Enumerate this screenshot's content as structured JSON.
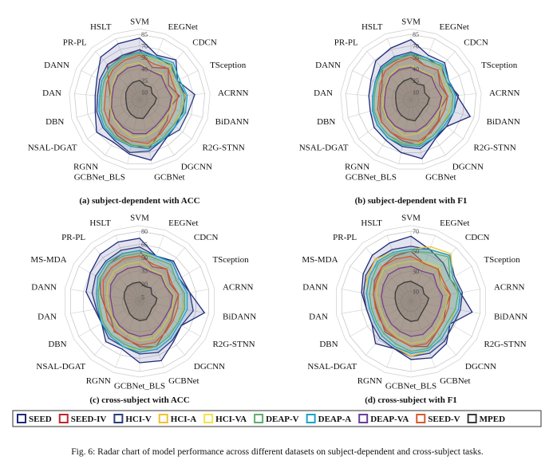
{
  "caption": "Fig. 6: Radar chart of model performance across different datasets on subject-dependent and cross-subject tasks.",
  "legend": [
    {
      "label": "SEED",
      "color": "#1f2a7a"
    },
    {
      "label": "SEED-IV",
      "color": "#c0262d"
    },
    {
      "label": "HCI-V",
      "color": "#2a3d7a"
    },
    {
      "label": "HCI-A",
      "color": "#f2c12e"
    },
    {
      "label": "HCI-VA",
      "color": "#f4e24a"
    },
    {
      "label": "DEAP-V",
      "color": "#5fae6e"
    },
    {
      "label": "DEAP-A",
      "color": "#1aa3c9"
    },
    {
      "label": "DEAP-VA",
      "color": "#6a3d9a"
    },
    {
      "label": "SEED-V",
      "color": "#d9582b"
    },
    {
      "label": "MPED",
      "color": "#3a3a3a"
    }
  ],
  "chart_data": [
    {
      "type": "radar",
      "subtitle": "(a) subject-dependent with ACC",
      "axes": [
        "SVM",
        "EEGNet",
        "CDCN",
        "TSception",
        "ACRNN",
        "BiDANN",
        "R2G-STNN",
        "DGCNN",
        "GCBNet",
        "GCBNet_BLS",
        "RGNN",
        "NSAL-DGAT",
        "DBN",
        "DAN",
        "DANN",
        "PR-PL",
        "HSLT"
      ],
      "ticks": [
        10,
        25,
        40,
        55,
        70,
        85
      ],
      "range": [
        0,
        85
      ],
      "series": [
        {
          "name": "SEED",
          "values": [
            80,
            62,
            70,
            55,
            60,
            58,
            58,
            62,
            80,
            72,
            65,
            70,
            60,
            58,
            62,
            75,
            78
          ]
        },
        {
          "name": "SEED-IV",
          "values": [
            65,
            45,
            55,
            42,
            52,
            40,
            45,
            50,
            65,
            60,
            55,
            50,
            40,
            38,
            45,
            62,
            60
          ]
        },
        {
          "name": "HCI-V",
          "values": [
            65,
            60,
            60,
            55,
            72,
            65,
            65,
            60,
            68,
            70,
            62,
            60,
            58,
            55,
            58,
            62,
            62
          ]
        },
        {
          "name": "HCI-A",
          "values": [
            62,
            55,
            60,
            50,
            60,
            55,
            55,
            58,
            60,
            62,
            58,
            55,
            52,
            50,
            52,
            58,
            60
          ]
        },
        {
          "name": "HCI-VA",
          "values": [
            48,
            40,
            45,
            38,
            45,
            42,
            42,
            45,
            48,
            50,
            45,
            42,
            40,
            38,
            40,
            45,
            48
          ]
        },
        {
          "name": "DEAP-V",
          "values": [
            60,
            58,
            62,
            55,
            58,
            60,
            55,
            58,
            62,
            60,
            58,
            55,
            52,
            50,
            52,
            55,
            58
          ]
        },
        {
          "name": "DEAP-A",
          "values": [
            62,
            60,
            65,
            58,
            62,
            62,
            58,
            60,
            65,
            62,
            60,
            58,
            55,
            52,
            55,
            58,
            60
          ]
        },
        {
          "name": "DEAP-VA",
          "values": [
            45,
            40,
            42,
            38,
            42,
            40,
            38,
            40,
            45,
            45,
            42,
            40,
            38,
            36,
            38,
            42,
            44
          ]
        },
        {
          "name": "SEED-V",
          "values": [
            58,
            50,
            55,
            48,
            50,
            48,
            48,
            52,
            58,
            55,
            52,
            50,
            48,
            45,
            48,
            52,
            55
          ]
        },
        {
          "name": "MPED",
          "values": [
            25,
            20,
            22,
            18,
            22,
            20,
            18,
            20,
            25,
            24,
            22,
            20,
            18,
            18,
            20,
            22,
            24
          ]
        }
      ]
    },
    {
      "type": "radar",
      "subtitle": "(b) subject-dependent with F1",
      "axes": [
        "SVM",
        "EEGNet",
        "CDCN",
        "TSception",
        "ACRNN",
        "BiDANN",
        "R2G-STNN",
        "DGCNN",
        "GCBNet",
        "GCBNet_BLS",
        "RGNN",
        "NSAL-DGAT",
        "DBN",
        "DAN",
        "DANN",
        "PR-PL",
        "HSLT"
      ],
      "ticks": [
        10,
        25,
        40,
        55,
        70,
        85
      ],
      "range": [
        0,
        85
      ],
      "series": [
        {
          "name": "SEED",
          "values": [
            78,
            62,
            65,
            55,
            60,
            80,
            58,
            60,
            78,
            70,
            62,
            60,
            55,
            55,
            58,
            68,
            72
          ]
        },
        {
          "name": "SEED-IV",
          "values": [
            60,
            48,
            52,
            42,
            48,
            40,
            45,
            48,
            60,
            55,
            50,
            48,
            42,
            40,
            42,
            55,
            55
          ]
        },
        {
          "name": "HCI-V",
          "values": [
            62,
            58,
            58,
            52,
            62,
            58,
            58,
            58,
            65,
            62,
            58,
            55,
            52,
            50,
            52,
            58,
            60
          ]
        },
        {
          "name": "HCI-A",
          "values": [
            60,
            55,
            58,
            48,
            55,
            52,
            52,
            55,
            58,
            60,
            55,
            52,
            50,
            48,
            50,
            55,
            58
          ]
        },
        {
          "name": "HCI-VA",
          "values": [
            45,
            40,
            42,
            36,
            42,
            40,
            40,
            42,
            45,
            48,
            42,
            40,
            38,
            36,
            38,
            42,
            45
          ]
        },
        {
          "name": "DEAP-V",
          "values": [
            58,
            55,
            60,
            52,
            55,
            55,
            52,
            55,
            60,
            58,
            55,
            52,
            50,
            48,
            50,
            55,
            56
          ]
        },
        {
          "name": "DEAP-A",
          "values": [
            60,
            58,
            62,
            55,
            58,
            58,
            55,
            58,
            62,
            60,
            58,
            55,
            52,
            50,
            52,
            56,
            58
          ]
        },
        {
          "name": "DEAP-VA",
          "values": [
            42,
            38,
            40,
            36,
            40,
            38,
            36,
            38,
            42,
            42,
            40,
            38,
            36,
            34,
            36,
            40,
            42
          ]
        },
        {
          "name": "SEED-V",
          "values": [
            55,
            48,
            52,
            45,
            48,
            46,
            46,
            50,
            55,
            52,
            50,
            48,
            45,
            42,
            45,
            50,
            52
          ]
        },
        {
          "name": "MPED",
          "values": [
            28,
            22,
            25,
            20,
            24,
            22,
            20,
            22,
            28,
            26,
            24,
            22,
            20,
            20,
            22,
            24,
            26
          ]
        }
      ]
    },
    {
      "type": "radar",
      "subtitle": "(c) cross-subject with ACC",
      "axes": [
        "SVM",
        "EEGNet",
        "CDCN",
        "TSception",
        "ACRNN",
        "BiDANN",
        "R2G-STNN",
        "DGCNN",
        "GCBNet",
        "GCBNet_BLS",
        "RGNN",
        "NSAL-DGAT",
        "DBN",
        "DAN",
        "DANN",
        "MS-MDA",
        "PR-PL",
        "HSLT"
      ],
      "ticks": [
        5,
        20,
        35,
        50,
        65,
        80
      ],
      "range": [
        0,
        80
      ],
      "series": [
        {
          "name": "SEED",
          "values": [
            72,
            55,
            60,
            55,
            58,
            75,
            55,
            60,
            72,
            70,
            58,
            60,
            50,
            52,
            62,
            65,
            70,
            72
          ]
        },
        {
          "name": "SEED-IV",
          "values": [
            58,
            42,
            48,
            40,
            45,
            40,
            42,
            45,
            55,
            52,
            45,
            45,
            38,
            40,
            45,
            52,
            55,
            58
          ]
        },
        {
          "name": "HCI-V",
          "values": [
            62,
            55,
            58,
            52,
            58,
            62,
            55,
            58,
            62,
            60,
            55,
            55,
            50,
            50,
            55,
            58,
            60,
            62
          ]
        },
        {
          "name": "HCI-A",
          "values": [
            58,
            52,
            55,
            48,
            52,
            50,
            50,
            52,
            55,
            58,
            52,
            50,
            48,
            48,
            50,
            55,
            58,
            58
          ]
        },
        {
          "name": "HCI-VA",
          "values": [
            45,
            38,
            40,
            35,
            40,
            38,
            38,
            40,
            45,
            45,
            40,
            38,
            36,
            36,
            38,
            42,
            45,
            45
          ]
        },
        {
          "name": "DEAP-V",
          "values": [
            55,
            52,
            55,
            48,
            52,
            52,
            50,
            52,
            55,
            55,
            52,
            50,
            48,
            46,
            48,
            52,
            55,
            55
          ]
        },
        {
          "name": "DEAP-A",
          "values": [
            58,
            55,
            58,
            52,
            55,
            55,
            52,
            55,
            58,
            58,
            55,
            52,
            50,
            48,
            50,
            55,
            58,
            58
          ]
        },
        {
          "name": "DEAP-VA",
          "values": [
            40,
            36,
            38,
            34,
            38,
            36,
            34,
            36,
            40,
            40,
            38,
            36,
            34,
            32,
            34,
            38,
            40,
            40
          ]
        },
        {
          "name": "SEED-V",
          "values": [
            52,
            45,
            48,
            42,
            45,
            44,
            44,
            46,
            50,
            50,
            46,
            44,
            42,
            40,
            42,
            48,
            50,
            52
          ]
        },
        {
          "name": "MPED",
          "values": [
            22,
            18,
            20,
            16,
            20,
            18,
            16,
            18,
            22,
            22,
            20,
            18,
            16,
            16,
            18,
            20,
            22,
            22
          ]
        }
      ]
    },
    {
      "type": "radar",
      "subtitle": "(d) cross-subject with F1",
      "axes": [
        "SVM",
        "EEGNet",
        "CDCN",
        "TSception",
        "ACRNN",
        "BiDANN",
        "R2G-STNN",
        "DGCNN",
        "GCBNet",
        "GCBNet_BLS",
        "RGNN",
        "NSAL-DGAT",
        "DBN",
        "DAN",
        "DANN",
        "MS-MDA",
        "PR-PL",
        "HSLT"
      ],
      "ticks": [
        10,
        30,
        50,
        70
      ],
      "range": [
        0,
        70
      ],
      "series": [
        {
          "name": "SEED",
          "values": [
            65,
            55,
            50,
            45,
            50,
            62,
            45,
            55,
            60,
            58,
            50,
            55,
            45,
            45,
            50,
            55,
            60,
            62
          ]
        },
        {
          "name": "SEED-IV",
          "values": [
            50,
            40,
            42,
            35,
            40,
            35,
            38,
            40,
            48,
            45,
            40,
            40,
            35,
            35,
            38,
            42,
            45,
            48
          ]
        },
        {
          "name": "HCI-V",
          "values": [
            55,
            55,
            60,
            50,
            52,
            50,
            48,
            52,
            55,
            55,
            50,
            48,
            45,
            45,
            48,
            52,
            55,
            55
          ]
        },
        {
          "name": "HCI-A",
          "values": [
            52,
            58,
            62,
            48,
            48,
            45,
            45,
            48,
            52,
            55,
            48,
            45,
            42,
            42,
            45,
            50,
            55,
            52
          ]
        },
        {
          "name": "HCI-VA",
          "values": [
            40,
            42,
            45,
            35,
            38,
            35,
            35,
            38,
            42,
            42,
            38,
            35,
            32,
            32,
            35,
            38,
            42,
            40
          ]
        },
        {
          "name": "DEAP-V",
          "values": [
            50,
            52,
            58,
            45,
            48,
            45,
            42,
            45,
            50,
            50,
            45,
            42,
            40,
            40,
            42,
            45,
            50,
            50
          ]
        },
        {
          "name": "DEAP-A",
          "values": [
            52,
            55,
            60,
            48,
            50,
            48,
            45,
            48,
            52,
            52,
            48,
            45,
            42,
            42,
            45,
            48,
            52,
            52
          ]
        },
        {
          "name": "DEAP-VA",
          "values": [
            35,
            32,
            35,
            30,
            32,
            30,
            30,
            32,
            35,
            35,
            32,
            30,
            28,
            28,
            30,
            32,
            35,
            35
          ]
        },
        {
          "name": "SEED-V",
          "values": [
            45,
            40,
            42,
            38,
            40,
            38,
            38,
            40,
            45,
            45,
            40,
            38,
            36,
            36,
            38,
            40,
            45,
            45
          ]
        },
        {
          "name": "MPED",
          "values": [
            20,
            18,
            18,
            15,
            18,
            16,
            15,
            16,
            20,
            20,
            18,
            16,
            15,
            15,
            16,
            18,
            20,
            20
          ]
        }
      ]
    }
  ]
}
